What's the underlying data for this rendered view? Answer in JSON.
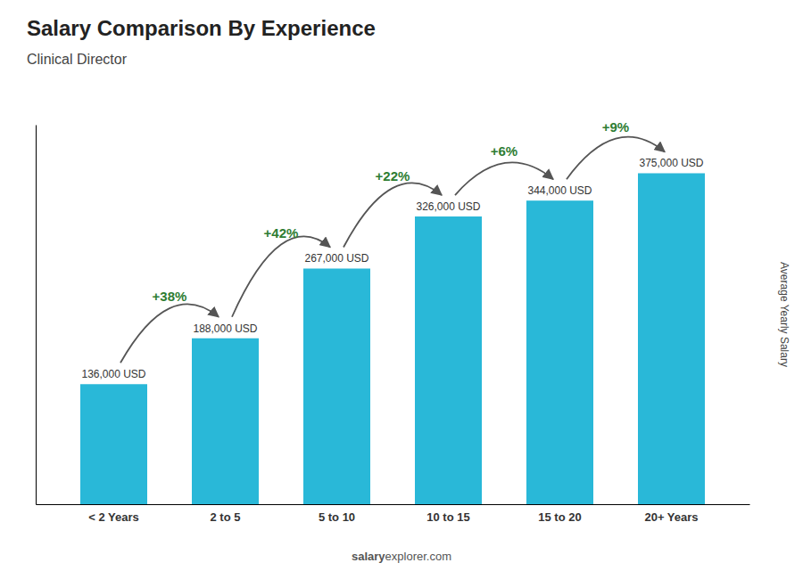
{
  "chart_data": {
    "type": "bar",
    "title": "Salary Comparison By Experience",
    "subtitle": "Clinical Director",
    "categories": [
      "< 2 Years",
      "2 to 5",
      "5 to 10",
      "10 to 15",
      "15 to 20",
      "20+ Years"
    ],
    "values": [
      136000,
      188000,
      267000,
      326000,
      344000,
      375000
    ],
    "value_labels": [
      "136,000 USD",
      "188,000 USD",
      "267,000 USD",
      "326,000 USD",
      "344,000 USD",
      "375,000 USD"
    ],
    "data_labels": true,
    "color": "#29b8d8",
    "ylim": [
      0,
      430000
    ],
    "ylabel": "Average Yearly Salary",
    "tick_labels": "x",
    "annotations": [
      null,
      "+38%",
      "+42%",
      "+22%",
      "+6%",
      "+9%"
    ],
    "footer": [
      "salary",
      "explorer.com"
    ]
  }
}
